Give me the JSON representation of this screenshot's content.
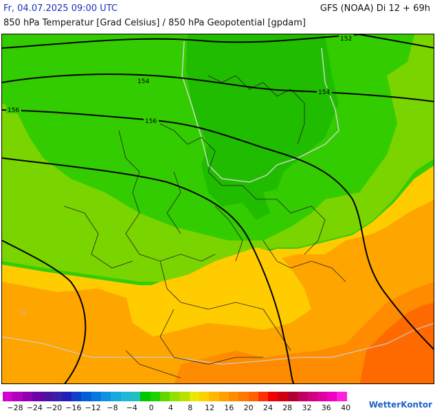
{
  "header": {
    "valid_time": "Fr, 04.07.2025 09:00 UTC",
    "model_run": "GFS (NOAA) Di 12 + 69h",
    "subtitle": "850 hPa Temperatur [Grad Celsius] / 850 hPa Geopotential [gpdam]"
  },
  "map": {
    "isohypse_labels": [
      "152",
      "154",
      "154",
      "156",
      "156"
    ],
    "temperature_label": "12"
  },
  "legend": {
    "labels": [
      "−28",
      "−24",
      "−20",
      "−16",
      "−12",
      "−8",
      "−4",
      "0",
      "4",
      "8",
      "12",
      "16",
      "20",
      "24",
      "28",
      "32",
      "36",
      "40"
    ],
    "colors": [
      "#d000d0",
      "#b000c0",
      "#9000b0",
      "#7000a8",
      "#5010a0",
      "#3a20a8",
      "#2020b8",
      "#1040c8",
      "#0060d8",
      "#0878e0",
      "#1090e0",
      "#18a8e0",
      "#20b8d8",
      "#20c0c0",
      "#00c800",
      "#20d000",
      "#60d800",
      "#90e000",
      "#b8e000",
      "#e8e800",
      "#ffd000",
      "#ffb800",
      "#ffa000",
      "#ff8c00",
      "#ff7800",
      "#ff6000",
      "#ff3000",
      "#f00000",
      "#d00010",
      "#b00030",
      "#c00060",
      "#d00080",
      "#e000a0",
      "#f000c0",
      "#ff20e0"
    ],
    "brand": "WetterKontor"
  }
}
